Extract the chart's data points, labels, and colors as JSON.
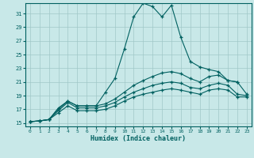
{
  "xlabel": "Humidex (Indice chaleur)",
  "background_color": "#c8e8e8",
  "grid_color": "#a0c8c8",
  "line_color": "#006060",
  "xlim": [
    -0.5,
    23.5
  ],
  "ylim": [
    14.5,
    32.5
  ],
  "yticks": [
    15,
    17,
    19,
    21,
    23,
    25,
    27,
    29,
    31
  ],
  "xticks": [
    0,
    1,
    2,
    3,
    4,
    5,
    6,
    7,
    8,
    9,
    10,
    11,
    12,
    13,
    14,
    15,
    16,
    17,
    18,
    19,
    20,
    21,
    22,
    23
  ],
  "series": [
    {
      "x": [
        0,
        1,
        2,
        3,
        4,
        5,
        6,
        7,
        8,
        9,
        10,
        11,
        12,
        13,
        14,
        15,
        16,
        17,
        18,
        19,
        20,
        21,
        22
      ],
      "y": [
        15.2,
        15.3,
        15.5,
        17.2,
        18.2,
        17.5,
        17.5,
        17.5,
        19.5,
        21.5,
        25.8,
        30.5,
        32.5,
        32.0,
        30.5,
        32.2,
        27.5,
        24.0,
        23.2,
        22.8,
        22.5,
        21.2,
        21.0
      ]
    },
    {
      "x": [
        0,
        1,
        2,
        3,
        4,
        5,
        6,
        7,
        8,
        9,
        10,
        11,
        12,
        13,
        14,
        15,
        16,
        17,
        18,
        19,
        20,
        21,
        22,
        23
      ],
      "y": [
        15.2,
        15.3,
        15.5,
        17.0,
        18.2,
        17.5,
        17.5,
        17.5,
        17.8,
        18.5,
        19.5,
        20.5,
        21.2,
        21.8,
        22.3,
        22.5,
        22.2,
        21.5,
        21.0,
        21.8,
        22.0,
        21.2,
        21.0,
        19.2
      ]
    },
    {
      "x": [
        0,
        1,
        2,
        3,
        4,
        5,
        6,
        7,
        8,
        9,
        10,
        11,
        12,
        13,
        14,
        15,
        16,
        17,
        18,
        19,
        20,
        21,
        22,
        23
      ],
      "y": [
        15.2,
        15.3,
        15.5,
        16.8,
        18.0,
        17.2,
        17.2,
        17.2,
        17.5,
        18.0,
        18.8,
        19.5,
        20.0,
        20.5,
        20.8,
        21.0,
        20.8,
        20.2,
        20.0,
        20.5,
        20.8,
        20.5,
        19.2,
        19.0
      ]
    },
    {
      "x": [
        0,
        1,
        2,
        3,
        4,
        5,
        6,
        7,
        8,
        9,
        10,
        11,
        12,
        13,
        14,
        15,
        16,
        17,
        18,
        19,
        20,
        21,
        22,
        23
      ],
      "y": [
        15.2,
        15.3,
        15.5,
        16.5,
        17.5,
        16.8,
        16.8,
        16.8,
        17.0,
        17.5,
        18.2,
        18.8,
        19.2,
        19.5,
        19.8,
        20.0,
        19.8,
        19.5,
        19.2,
        19.8,
        20.0,
        19.8,
        18.8,
        18.8
      ]
    }
  ]
}
